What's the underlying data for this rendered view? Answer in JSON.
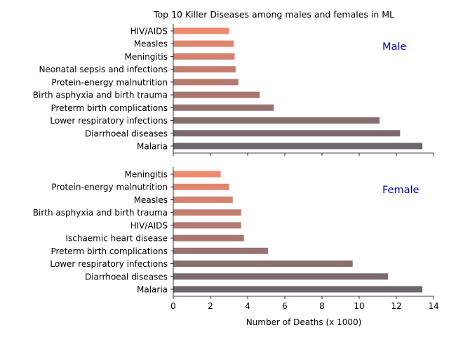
{
  "title": "Top 10 Killer Diseases among males and females in ML",
  "chart_data": [
    {
      "type": "bar",
      "orientation": "horizontal",
      "annotation": "Male",
      "categories": [
        "Malaria",
        "Diarrhoeal diseases",
        "Lower respiratory infections",
        "Preterm birth complications",
        "Birth asphyxia and birth trauma",
        "Protein-energy malnutrition",
        "Neonatal sepsis and infections",
        "Meningitis",
        "Measles",
        "HIV/AIDS"
      ],
      "values": [
        13.4,
        12.2,
        11.1,
        5.4,
        4.65,
        3.5,
        3.35,
        3.3,
        3.25,
        3.0
      ],
      "xlim": [
        0,
        14
      ],
      "grid": false
    },
    {
      "type": "bar",
      "orientation": "horizontal",
      "annotation": "Female",
      "categories": [
        "Malaria",
        "Diarrhoeal diseases",
        "Lower respiratory infections",
        "Preterm birth complications",
        "Ischaemic heart disease",
        "HIV/AIDS",
        "Birth asphyxia and birth trauma",
        "Measles",
        "Protein-energy malnutrition",
        "Meningitis"
      ],
      "values": [
        13.4,
        11.55,
        9.65,
        5.1,
        3.8,
        3.65,
        3.65,
        3.2,
        3.0,
        2.55
      ],
      "xlim": [
        0,
        14
      ],
      "xlabel": "Number of Deaths (x 1000)",
      "xticks": [
        "0",
        "2",
        "4",
        "6",
        "8",
        "10",
        "12",
        "14"
      ],
      "grid": false
    }
  ],
  "colors": {
    "bar_gradient_start": "#6b6670",
    "bar_gradient_end": "#f08a6e",
    "annotation": "#0000ee"
  }
}
